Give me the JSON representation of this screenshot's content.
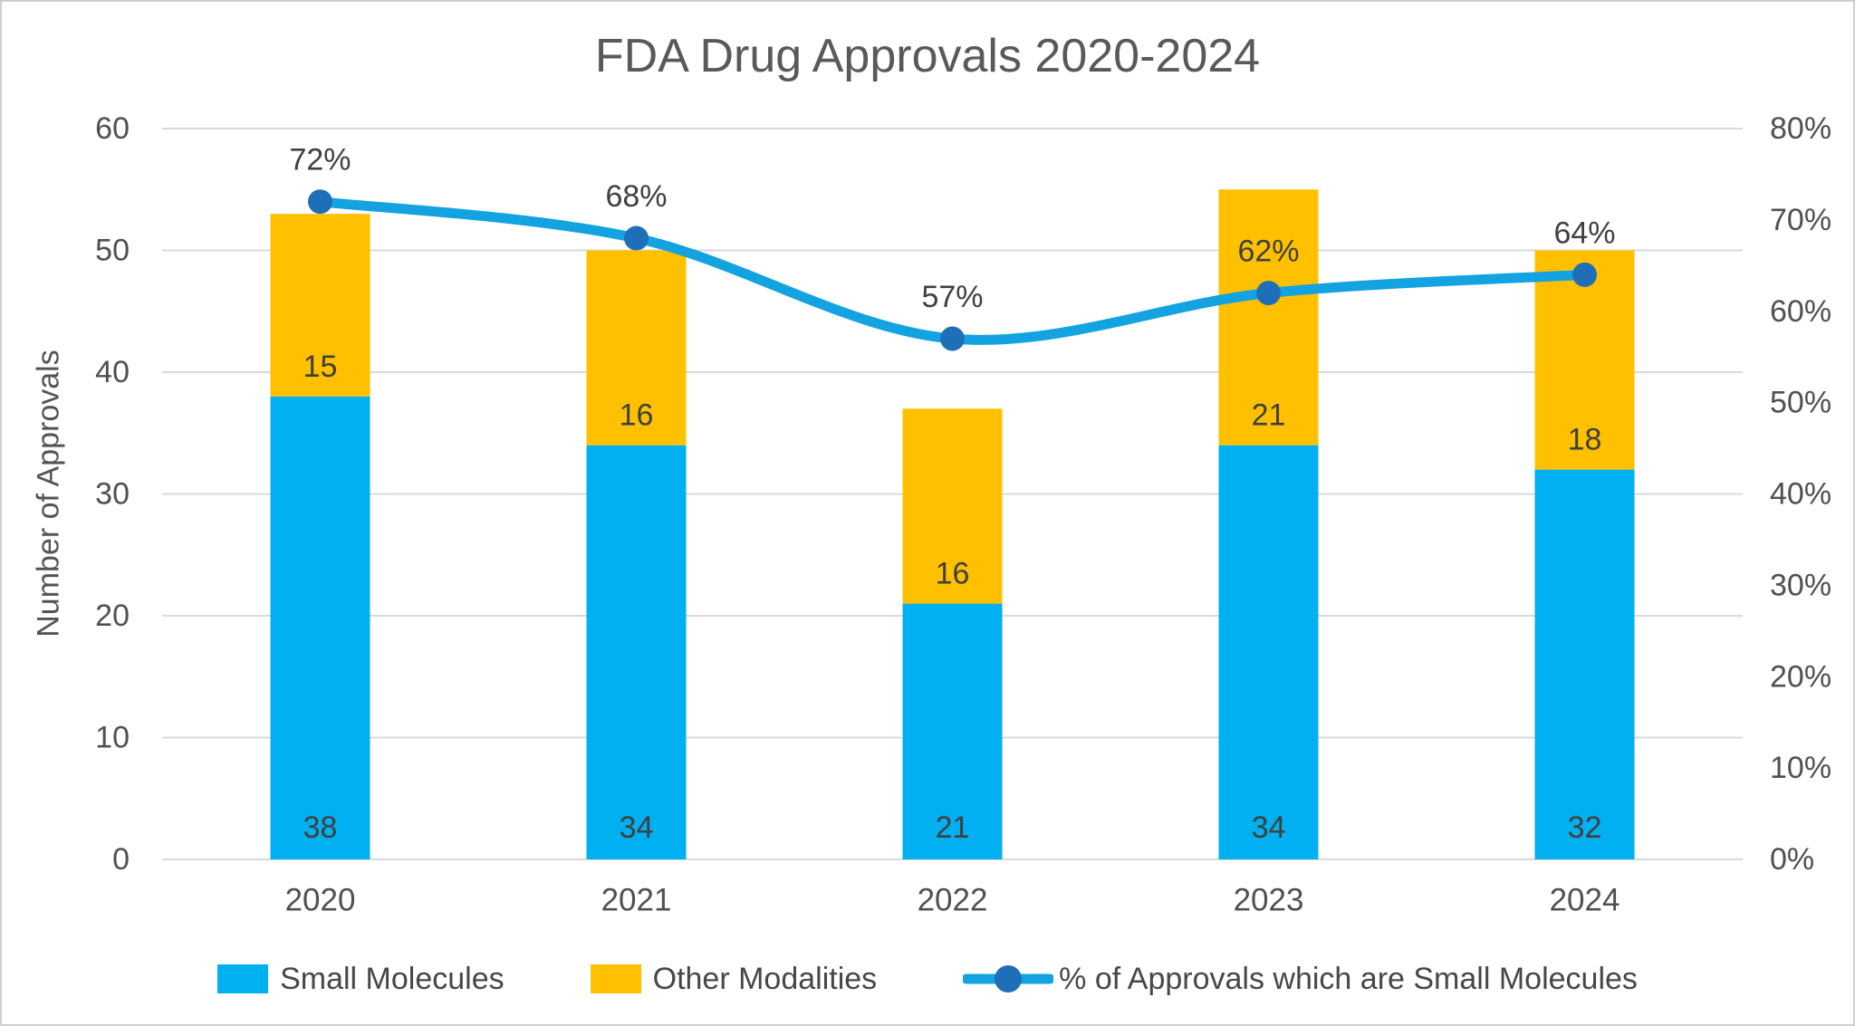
{
  "frame": {
    "background_color": "#ffffff",
    "border_color": "#cfcfcf"
  },
  "chart_data": {
    "type": "combo-stacked-bar-line",
    "title": "FDA Drug Approvals 2020-2024",
    "ylabel": "Number of Approvals",
    "categories": [
      "2020",
      "2021",
      "2022",
      "2023",
      "2024"
    ],
    "series": [
      {
        "name": "Small Molecules",
        "type": "bar",
        "axis": "left",
        "color": "#00B0F0",
        "values": [
          38,
          34,
          21,
          34,
          32
        ]
      },
      {
        "name": "Other Modalities",
        "type": "bar",
        "axis": "left",
        "color": "#FFC000",
        "values": [
          15,
          16,
          16,
          21,
          18
        ]
      },
      {
        "name": "% of Approvals which are Small Molecules",
        "type": "line",
        "axis": "right",
        "color": "#12A3E0",
        "marker_color": "#1F6FB8",
        "values": [
          72,
          68,
          57,
          62,
          64
        ],
        "labels": [
          "72%",
          "68%",
          "57%",
          "62%",
          "64%"
        ]
      }
    ],
    "left_axis": {
      "min": 0,
      "max": 60,
      "tick_labels": [
        "0",
        "10",
        "20",
        "30",
        "40",
        "50",
        "60"
      ]
    },
    "right_axis": {
      "min": 0,
      "max": 80,
      "tick_labels": [
        "0%",
        "10%",
        "20%",
        "30%",
        "40%",
        "50%",
        "60%",
        "70%",
        "80%"
      ]
    },
    "grid": true,
    "gridline_color": "#D9D9D9",
    "tick_label_color": "#505050",
    "data_label_color": "#404040",
    "legend_position": "bottom"
  }
}
